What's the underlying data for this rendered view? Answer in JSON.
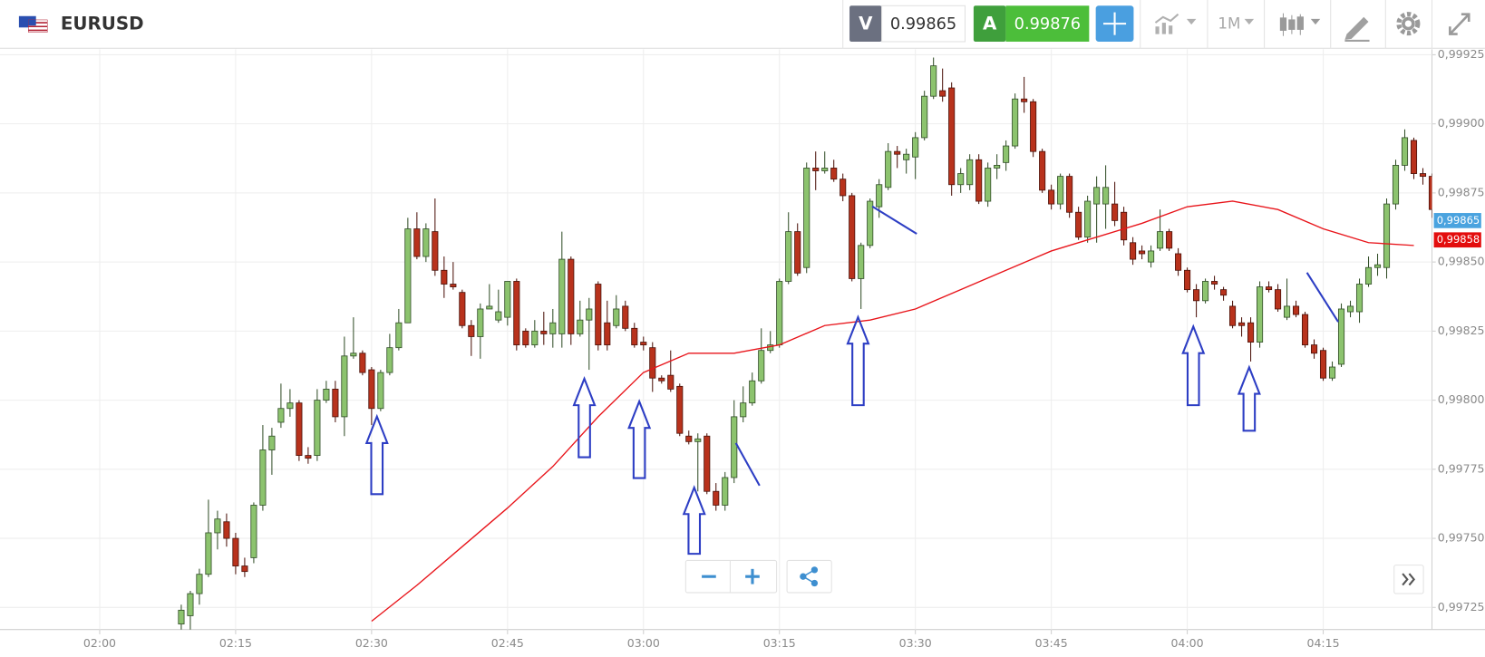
{
  "header": {
    "symbol": "EURUSD",
    "bid_label": "V",
    "bid": 0.99865,
    "ask_label": "A",
    "ask": 0.99876,
    "timeframe": "1M"
  },
  "chart_data": {
    "type": "candlestick",
    "up_color": "#8cc36e",
    "down_color": "#b8321c",
    "grid": true,
    "xlim": [
      "01:49",
      "04:27"
    ],
    "xticks": [
      "02:00",
      "02:15",
      "02:30",
      "02:45",
      "03:00",
      "03:15",
      "03:30",
      "03:45",
      "04:00",
      "04:15"
    ],
    "ylim": [
      0.99717,
      0.99927
    ],
    "yticks": [
      {
        "value": 0.99925,
        "label": "0,99925"
      },
      {
        "value": 0.999,
        "label": "0,99900"
      },
      {
        "value": 0.99875,
        "label": "0,99875"
      },
      {
        "value": 0.9985,
        "label": "0,99850"
      },
      {
        "value": 0.99825,
        "label": "0,99825"
      },
      {
        "value": 0.998,
        "label": "0,99800"
      },
      {
        "value": 0.99775,
        "label": "0,99775"
      },
      {
        "value": 0.9975,
        "label": "0,99750"
      },
      {
        "value": 0.99725,
        "label": "0,99725"
      }
    ],
    "x": [
      "02:09",
      "02:10",
      "02:11",
      "02:12",
      "02:13",
      "02:14",
      "02:15",
      "02:16",
      "02:17",
      "02:18",
      "02:19",
      "02:20",
      "02:21",
      "02:22",
      "02:23",
      "02:24",
      "02:25",
      "02:26",
      "02:27",
      "02:28",
      "02:29",
      "02:30",
      "02:31",
      "02:32",
      "02:33",
      "02:34",
      "02:35",
      "02:36",
      "02:37",
      "02:38",
      "02:39",
      "02:40",
      "02:41",
      "02:42",
      "02:43",
      "02:44",
      "02:45",
      "02:46",
      "02:47",
      "02:48",
      "02:49",
      "02:50",
      "02:51",
      "02:52",
      "02:53",
      "02:54",
      "02:55",
      "02:56",
      "02:57",
      "02:58",
      "02:59",
      "03:00",
      "03:01",
      "03:02",
      "03:03",
      "03:04",
      "03:05",
      "03:06",
      "03:07",
      "03:08",
      "03:09",
      "03:10",
      "03:11",
      "03:12",
      "03:13",
      "03:14",
      "03:15",
      "03:16",
      "03:17",
      "03:18",
      "03:19",
      "03:20",
      "03:21",
      "03:22",
      "03:23",
      "03:24",
      "03:25",
      "03:26",
      "03:27",
      "03:28",
      "03:29",
      "03:30",
      "03:31",
      "03:32",
      "03:33",
      "03:34",
      "03:35",
      "03:36",
      "03:37",
      "03:38",
      "03:39",
      "03:40",
      "03:41",
      "03:42",
      "03:43",
      "03:44",
      "03:45",
      "03:46",
      "03:47",
      "03:48",
      "03:49",
      "03:50",
      "03:51",
      "03:52",
      "03:53",
      "03:54",
      "03:55",
      "03:56",
      "03:57",
      "03:58",
      "03:59",
      "04:00",
      "04:01",
      "04:02",
      "04:03",
      "04:04",
      "04:05",
      "04:06",
      "04:07",
      "04:08",
      "04:09",
      "04:10",
      "04:11",
      "04:12",
      "04:13",
      "04:14",
      "04:15",
      "04:16",
      "04:17",
      "04:18",
      "04:19",
      "04:20",
      "04:21",
      "04:22",
      "04:23",
      "04:24",
      "04:25",
      "04:26",
      "04:27"
    ],
    "open": [
      0.99719,
      0.99722,
      0.9973,
      0.99737,
      0.99752,
      0.99756,
      0.9975,
      0.9974,
      0.99743,
      0.99762,
      0.99782,
      0.99792,
      0.99797,
      0.99799,
      0.9978,
      0.9978,
      0.998,
      0.99804,
      0.99794,
      0.99816,
      0.99817,
      0.99811,
      0.99797,
      0.9981,
      0.99819,
      0.99828,
      0.99862,
      0.99852,
      0.99861,
      0.99847,
      0.99842,
      0.99839,
      0.99827,
      0.99823,
      0.99833,
      0.99829,
      0.9983,
      0.99843,
      0.99825,
      0.9982,
      0.99825,
      0.99824,
      0.99824,
      0.99851,
      0.99824,
      0.99829,
      0.99842,
      0.99828,
      0.99827,
      0.99834,
      0.99826,
      0.99821,
      0.99819,
      0.99808,
      0.99809,
      0.99805,
      0.99787,
      0.99785,
      0.99787,
      0.99767,
      0.99762,
      0.99772,
      0.99794,
      0.99799,
      0.99807,
      0.99818,
      0.9982,
      0.99843,
      0.99861,
      0.99848,
      0.99884,
      0.99883,
      0.99884,
      0.9988,
      0.99874,
      0.99844,
      0.99856,
      0.9987,
      0.99877,
      0.9989,
      0.99887,
      0.99888,
      0.99895,
      0.9991,
      0.99912,
      0.99913,
      0.99878,
      0.99878,
      0.99887,
      0.99872,
      0.99884,
      0.99886,
      0.99892,
      0.99909,
      0.99908,
      0.9989,
      0.99876,
      0.99871,
      0.99881,
      0.99868,
      0.99859,
      0.99871,
      0.99871,
      0.99871,
      0.99868,
      0.99857,
      0.99854,
      0.9985,
      0.99855,
      0.99861,
      0.99853,
      0.99847,
      0.9984,
      0.99836,
      0.99843,
      0.9984,
      0.99834,
      0.99828,
      0.99828,
      0.99821,
      0.99841,
      0.9984,
      0.9983,
      0.99834,
      0.99831,
      0.9982,
      0.99818,
      0.99808,
      0.99813,
      0.99832,
      0.99832,
      0.99842,
      0.99848,
      0.99848,
      0.99871,
      0.99885,
      0.99894,
      0.99882,
      0.99881
    ],
    "high": [
      0.99726,
      0.99731,
      0.99739,
      0.99764,
      0.9976,
      0.99759,
      0.99752,
      0.99743,
      0.99763,
      0.99791,
      0.9979,
      0.99806,
      0.99804,
      0.998,
      0.99783,
      0.99804,
      0.99807,
      0.99807,
      0.99823,
      0.9983,
      0.99818,
      0.99812,
      0.99811,
      0.99824,
      0.99833,
      0.99866,
      0.99868,
      0.99864,
      0.99873,
      0.99852,
      0.9985,
      0.9984,
      0.99829,
      0.99835,
      0.99842,
      0.9984,
      0.99843,
      0.99844,
      0.99826,
      0.99829,
      0.99832,
      0.99833,
      0.99861,
      0.99852,
      0.99836,
      0.99837,
      0.99843,
      0.99836,
      0.99838,
      0.99836,
      0.99828,
      0.99823,
      0.99821,
      0.99809,
      0.99818,
      0.99806,
      0.99789,
      0.99788,
      0.99788,
      0.9977,
      0.99774,
      0.998,
      0.99805,
      0.9981,
      0.99826,
      0.99825,
      0.99844,
      0.99868,
      0.99864,
      0.99886,
      0.9989,
      0.9989,
      0.99887,
      0.99882,
      0.99875,
      0.99857,
      0.99873,
      0.9988,
      0.99893,
      0.99892,
      0.99891,
      0.99897,
      0.99912,
      0.99924,
      0.9992,
      0.99915,
      0.99884,
      0.99889,
      0.99889,
      0.99886,
      0.99889,
      0.99894,
      0.99911,
      0.99917,
      0.99909,
      0.99891,
      0.99878,
      0.99882,
      0.99882,
      0.9987,
      0.99874,
      0.99881,
      0.99885,
      0.99879,
      0.9987,
      0.99859,
      0.99856,
      0.99856,
      0.99869,
      0.99862,
      0.99855,
      0.99848,
      0.99842,
      0.99844,
      0.99845,
      0.99841,
      0.99836,
      0.9983,
      0.9983,
      0.99843,
      0.99843,
      0.99842,
      0.99844,
      0.99836,
      0.99832,
      0.99822,
      0.99819,
      0.99814,
      0.99835,
      0.99836,
      0.99844,
      0.99852,
      0.99853,
      0.99873,
      0.99887,
      0.99898,
      0.99895,
      0.99884,
      0.99882
    ],
    "low": [
      0.99716,
      0.99716,
      0.99726,
      0.99736,
      0.99746,
      0.99747,
      0.99737,
      0.99736,
      0.99741,
      0.9976,
      0.99773,
      0.9979,
      0.99794,
      0.99778,
      0.99777,
      0.99778,
      0.99799,
      0.99792,
      0.99787,
      0.99815,
      0.99809,
      0.99791,
      0.99796,
      0.99809,
      0.99818,
      0.99828,
      0.99851,
      0.9985,
      0.99845,
      0.99837,
      0.9984,
      0.99826,
      0.99816,
      0.99815,
      0.99833,
      0.99828,
      0.99827,
      0.99818,
      0.99819,
      0.99819,
      0.9982,
      0.99819,
      0.99819,
      0.9982,
      0.99823,
      0.99811,
      0.99818,
      0.99818,
      0.99826,
      0.99825,
      0.99819,
      0.99818,
      0.99803,
      0.99806,
      0.99803,
      0.99787,
      0.99784,
      0.99767,
      0.99766,
      0.9976,
      0.9976,
      0.9977,
      0.99792,
      0.99798,
      0.99806,
      0.99817,
      0.99819,
      0.99842,
      0.99845,
      0.99846,
      0.99876,
      0.99882,
      0.99879,
      0.99872,
      0.99843,
      0.99833,
      0.99855,
      0.99866,
      0.99876,
      0.99884,
      0.99882,
      0.9988,
      0.99894,
      0.99909,
      0.99908,
      0.99874,
      0.99875,
      0.99876,
      0.99871,
      0.9987,
      0.9988,
      0.99883,
      0.99891,
      0.99904,
      0.99888,
      0.99875,
      0.99869,
      0.99869,
      0.99866,
      0.99858,
      0.99857,
      0.99857,
      0.99862,
      0.99863,
      0.99856,
      0.99849,
      0.99851,
      0.99848,
      0.99854,
      0.99854,
      0.99845,
      0.99839,
      0.9983,
      0.99835,
      0.9984,
      0.99836,
      0.99826,
      0.99823,
      0.99814,
      0.99819,
      0.99839,
      0.99832,
      0.99829,
      0.9983,
      0.99819,
      0.99815,
      0.99807,
      0.99807,
      0.99812,
      0.9983,
      0.99828,
      0.99841,
      0.99845,
      0.99844,
      0.99869,
      0.99883,
      0.9988,
      0.99878,
      0.99866
    ],
    "close": [
      0.99724,
      0.9973,
      0.99737,
      0.99752,
      0.99757,
      0.9975,
      0.9974,
      0.99738,
      0.99762,
      0.99782,
      0.99787,
      0.99797,
      0.99799,
      0.9978,
      0.99779,
      0.998,
      0.99804,
      0.99794,
      0.99816,
      0.99817,
      0.9981,
      0.99797,
      0.9981,
      0.99819,
      0.99828,
      0.99862,
      0.99852,
      0.99862,
      0.99847,
      0.99842,
      0.99841,
      0.99827,
      0.99823,
      0.99833,
      0.99834,
      0.99832,
      0.99843,
      0.9982,
      0.9982,
      0.99825,
      0.99824,
      0.99828,
      0.99851,
      0.99824,
      0.99829,
      0.99833,
      0.9982,
      0.9982,
      0.99833,
      0.99826,
      0.9982,
      0.9982,
      0.99808,
      0.99807,
      0.99804,
      0.99788,
      0.99785,
      0.99786,
      0.99767,
      0.99762,
      0.99772,
      0.99794,
      0.99799,
      0.99807,
      0.99818,
      0.9982,
      0.99843,
      0.99861,
      0.99846,
      0.99884,
      0.99883,
      0.99884,
      0.9988,
      0.99874,
      0.99844,
      0.99856,
      0.99872,
      0.99878,
      0.9989,
      0.99889,
      0.99889,
      0.99895,
      0.9991,
      0.99921,
      0.9991,
      0.99878,
      0.99882,
      0.99887,
      0.99872,
      0.99884,
      0.99885,
      0.99892,
      0.99909,
      0.99908,
      0.9989,
      0.99876,
      0.99871,
      0.99881,
      0.99868,
      0.99859,
      0.99872,
      0.99877,
      0.99877,
      0.99865,
      0.99858,
      0.99851,
      0.99853,
      0.99854,
      0.99861,
      0.99855,
      0.99847,
      0.9984,
      0.99836,
      0.99843,
      0.99842,
      0.99838,
      0.99827,
      0.99827,
      0.99821,
      0.99841,
      0.9984,
      0.99833,
      0.99834,
      0.99831,
      0.9982,
      0.99817,
      0.99808,
      0.99812,
      0.99833,
      0.99834,
      0.99842,
      0.99848,
      0.99849,
      0.99871,
      0.99885,
      0.99895,
      0.99882,
      0.99881,
      0.99869
    ],
    "ma": {
      "color": "#e8141a",
      "x": [
        "02:30",
        "02:35",
        "02:40",
        "02:45",
        "02:50",
        "02:55",
        "03:00",
        "03:05",
        "03:10",
        "03:15",
        "03:20",
        "03:25",
        "03:30",
        "03:35",
        "03:40",
        "03:45",
        "03:50",
        "03:55",
        "04:00",
        "04:05",
        "04:10",
        "04:15",
        "04:20",
        "04:25"
      ],
      "values": [
        0.9972,
        0.99733,
        0.99747,
        0.99761,
        0.99776,
        0.99794,
        0.9981,
        0.99817,
        0.99817,
        0.9982,
        0.99827,
        0.99829,
        0.99833,
        0.9984,
        0.99847,
        0.99854,
        0.99859,
        0.99864,
        0.9987,
        0.99872,
        0.99869,
        0.99862,
        0.99857,
        0.99856
      ]
    },
    "price_tags": [
      {
        "value": 0.99865,
        "label": "0,99865",
        "color": "#4aa3df"
      },
      {
        "value": 0.99858,
        "label": "0,99858",
        "color": "#e30d0d"
      }
    ]
  }
}
